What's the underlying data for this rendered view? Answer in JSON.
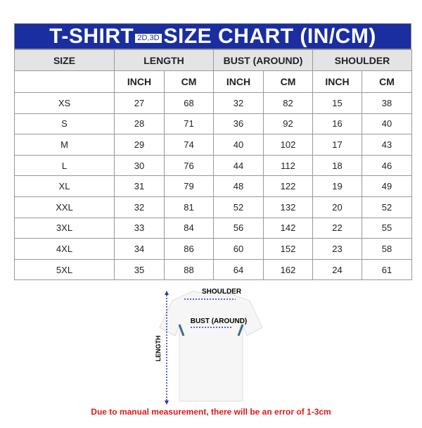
{
  "title": {
    "prefix": "T-SHIRT",
    "badge": "2D,3D",
    "suffix": "SIZE CHART (IN/CM)"
  },
  "colors": {
    "title_bg": "#1a2ea0",
    "header_bg": "#e4e4e4",
    "note": "#e01818",
    "arrow": "#2a3aa8"
  },
  "headers": {
    "size": "SIZE",
    "length": "LENGTH",
    "bust": "BUST (AROUND)",
    "shoulder": "SHOULDER"
  },
  "subheaders": [
    "INCH",
    "CM",
    "INCH",
    "CM",
    "INCH",
    "CM"
  ],
  "rows": [
    [
      "XS",
      "27",
      "68",
      "32",
      "82",
      "15",
      "38"
    ],
    [
      "S",
      "28",
      "71",
      "36",
      "92",
      "16",
      "40"
    ],
    [
      "M",
      "29",
      "74",
      "40",
      "102",
      "17",
      "43"
    ],
    [
      "L",
      "30",
      "76",
      "44",
      "112",
      "18",
      "46"
    ],
    [
      "XL",
      "31",
      "79",
      "48",
      "122",
      "19",
      "49"
    ],
    [
      "XXL",
      "32",
      "81",
      "52",
      "132",
      "20",
      "52"
    ],
    [
      "3XL",
      "33",
      "84",
      "56",
      "142",
      "22",
      "55"
    ],
    [
      "4XL",
      "34",
      "86",
      "60",
      "152",
      "23",
      "58"
    ],
    [
      "5XL",
      "35",
      "88",
      "64",
      "162",
      "24",
      "61"
    ]
  ],
  "diagram": {
    "shoulder": "SHOULDER",
    "bust": "BUST (AROUND)",
    "length": "LENGTH"
  },
  "note": "Due to manual measurement, there will be an error of 1-3cm"
}
